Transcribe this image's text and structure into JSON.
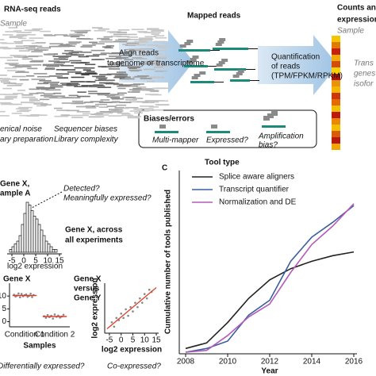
{
  "panel_a": {
    "reads_title": "RNA-seq reads",
    "sample": "Sample",
    "noise": [
      "enical noise",
      "ary preparation"
    ],
    "biases": [
      "Sequencer biases",
      "Library complexity"
    ],
    "align": [
      "Align reads",
      "to genome or transcriptome"
    ],
    "mapped_title": "Mapped reads",
    "quant": [
      "Quantification",
      "of reads",
      "(TPM/FPKM/RPKM)"
    ],
    "counts_title": [
      "Counts and",
      "expression"
    ],
    "counts_sample": "Sample",
    "counts_side": [
      "Trans",
      "genes",
      "isofor"
    ],
    "errors": {
      "title": "Biases/errors",
      "labels": [
        "Multi-mapper",
        "Expressed?",
        "Amplification",
        "bias?"
      ]
    }
  },
  "chart_data": [
    {
      "type": "histogram",
      "title": [
        "Gene X,",
        "ample A"
      ],
      "annotations": [
        "Detected?",
        "Meaningfully expressed?",
        "Gene X, across",
        "all experiments"
      ],
      "bins": [
        -6,
        -5,
        -4,
        -3,
        -2,
        -1,
        0,
        1,
        2,
        3,
        4,
        5,
        6,
        7,
        8,
        9,
        10,
        11,
        12,
        13,
        14
      ],
      "counts": [
        1,
        2,
        3,
        4,
        6,
        10,
        14,
        18,
        17,
        15,
        13,
        12,
        10,
        8,
        6,
        4,
        3,
        2,
        1,
        1
      ],
      "xlim": [
        -7,
        16
      ],
      "ylim": [
        0,
        20
      ],
      "xticks": [
        -5,
        0,
        5,
        10,
        15
      ],
      "xlabel": "log2 expression"
    },
    {
      "type": "strip",
      "title": "Gene X",
      "categories": [
        "Condition 1",
        "Condition 2"
      ],
      "values": [
        [
          10.5,
          9.8,
          10.2,
          11,
          9.5,
          10.8,
          9.9,
          10.3,
          10.6,
          9.7,
          10.1,
          10.9,
          9.6,
          10.4
        ],
        [
          2.1,
          1.5,
          2.6,
          1.8,
          2.3,
          1.2,
          2.8,
          1.9,
          2.4,
          1.6,
          2.0,
          2.7
        ]
      ],
      "means": [
        10.2,
        2.0
      ],
      "color": "#888888",
      "mean_color": "#d9402b",
      "ylim": [
        -2,
        15
      ],
      "yticks": [
        0,
        5,
        10
      ],
      "xlabel": "Samples",
      "annotation": "Differentially expressed?"
    },
    {
      "type": "scatter",
      "title": [
        "Gene X",
        "versus",
        "Gene Y"
      ],
      "x": [
        -4,
        -3,
        -2,
        -1,
        0,
        1,
        2,
        3,
        4,
        5,
        6,
        7,
        8,
        9,
        10,
        11,
        12,
        13
      ],
      "y": [
        -2,
        -4,
        0,
        -1,
        2,
        0,
        4,
        1,
        5,
        3,
        7,
        5,
        9,
        7,
        11,
        9,
        13,
        12
      ],
      "fit": {
        "x": [
          -6,
          15
        ],
        "y": [
          -5,
          14
        ]
      },
      "color": "#888888",
      "fit_color": "#d9402b",
      "xlim": [
        -7,
        16
      ],
      "ylim": [
        -7,
        16
      ],
      "xticks": [
        -5,
        0,
        5,
        10,
        15
      ],
      "xlabel": "log2 expression",
      "ylabel": "log2 expression",
      "annotation": "Co-expressed?"
    },
    {
      "type": "line",
      "panel": "C",
      "legend_title": "Tool type",
      "x": [
        2008,
        2009,
        2010,
        2011,
        2012,
        2013,
        2014,
        2015,
        2016
      ],
      "series": [
        {
          "name": "Splice aware aligners",
          "color": "#222222",
          "values": [
            2,
            5,
            16,
            29,
            39,
            45,
            49,
            52,
            54
          ]
        },
        {
          "name": "Transcript quantifier",
          "color": "#3a5fa0",
          "values": [
            0,
            2,
            6,
            20,
            28,
            49,
            62,
            70,
            79
          ]
        },
        {
          "name": "Normalization and DE",
          "color": "#b45bb8",
          "values": [
            0,
            1,
            9,
            19,
            26,
            43,
            58,
            68,
            80
          ]
        }
      ],
      "xlim": [
        2008,
        2016
      ],
      "ylim": [
        0,
        100
      ],
      "xticks": [
        2008,
        2010,
        2012,
        2014,
        2016
      ],
      "xlabel": "Year",
      "ylabel": "Cumulative number of tools published"
    }
  ]
}
